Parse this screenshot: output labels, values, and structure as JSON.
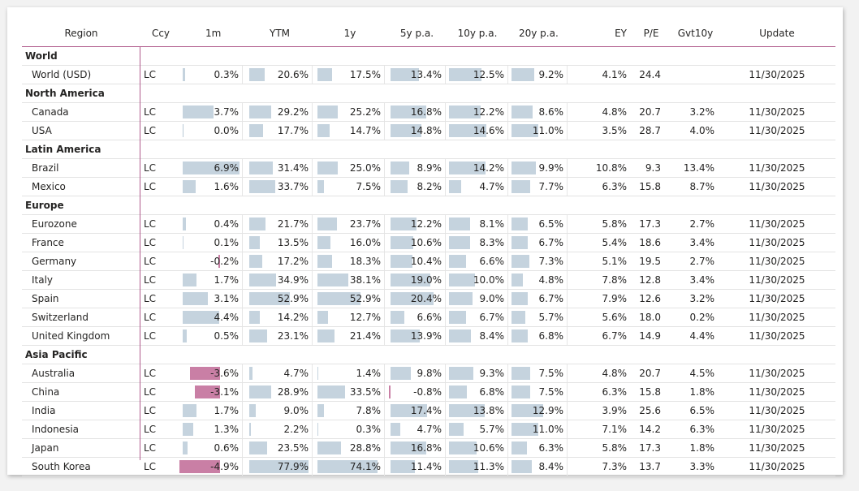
{
  "columns": {
    "region": "Region",
    "ccy": "Ccy",
    "m1": "1m",
    "ytm": "YTM",
    "y1": "1y",
    "y5": "5y p.a.",
    "y10": "10y p.a.",
    "y20": "20y p.a.",
    "ey": "EY",
    "pe": "P/E",
    "gvt10y": "Gvt10y",
    "update": "Update"
  },
  "colors": {
    "bar": "#c5d3de",
    "neg_bar": "#c97fa5",
    "accent_line": "#b05a8c"
  },
  "rows": [
    {
      "type": "group",
      "region": "World"
    },
    {
      "type": "data",
      "region": "World (USD)",
      "ccy": "LC",
      "m1": 0.3,
      "ytm": 20.6,
      "y1": 17.5,
      "y5": 13.4,
      "y10": 12.5,
      "y20": 9.2,
      "ey": "4.1%",
      "pe": "24.4",
      "gvt10y": "",
      "update": "11/30/2025"
    },
    {
      "type": "group",
      "region": "North America"
    },
    {
      "type": "data",
      "region": "Canada",
      "ccy": "LC",
      "m1": 3.7,
      "ytm": 29.2,
      "y1": 25.2,
      "y5": 16.8,
      "y10": 12.2,
      "y20": 8.6,
      "ey": "4.8%",
      "pe": "20.7",
      "gvt10y": "3.2%",
      "update": "11/30/2025"
    },
    {
      "type": "data",
      "region": "USA",
      "ccy": "LC",
      "m1": 0.0,
      "ytm": 17.7,
      "y1": 14.7,
      "y5": 14.8,
      "y10": 14.6,
      "y20": 11.0,
      "ey": "3.5%",
      "pe": "28.7",
      "gvt10y": "4.0%",
      "update": "11/30/2025"
    },
    {
      "type": "group",
      "region": "Latin America"
    },
    {
      "type": "data",
      "region": "Brazil",
      "ccy": "LC",
      "m1": 6.9,
      "ytm": 31.4,
      "y1": 25.0,
      "y5": 8.9,
      "y10": 14.2,
      "y20": 9.9,
      "ey": "10.8%",
      "pe": "9.3",
      "gvt10y": "13.4%",
      "update": "11/30/2025"
    },
    {
      "type": "data",
      "region": "Mexico",
      "ccy": "LC",
      "m1": 1.6,
      "ytm": 33.7,
      "y1": 7.5,
      "y5": 8.2,
      "y10": 4.7,
      "y20": 7.7,
      "ey": "6.3%",
      "pe": "15.8",
      "gvt10y": "8.7%",
      "update": "11/30/2025"
    },
    {
      "type": "group",
      "region": "Europe"
    },
    {
      "type": "data",
      "region": "Eurozone",
      "ccy": "LC",
      "m1": 0.4,
      "ytm": 21.7,
      "y1": 23.7,
      "y5": 12.2,
      "y10": 8.1,
      "y20": 6.5,
      "ey": "5.8%",
      "pe": "17.3",
      "gvt10y": "2.7%",
      "update": "11/30/2025"
    },
    {
      "type": "data",
      "region": "France",
      "ccy": "LC",
      "m1": 0.1,
      "ytm": 13.5,
      "y1": 16.0,
      "y5": 10.6,
      "y10": 8.3,
      "y20": 6.7,
      "ey": "5.4%",
      "pe": "18.6",
      "gvt10y": "3.4%",
      "update": "11/30/2025"
    },
    {
      "type": "data",
      "region": "Germany",
      "ccy": "LC",
      "m1": -0.2,
      "ytm": 17.2,
      "y1": 18.3,
      "y5": 10.4,
      "y10": 6.6,
      "y20": 7.3,
      "ey": "5.1%",
      "pe": "19.5",
      "gvt10y": "2.7%",
      "update": "11/30/2025"
    },
    {
      "type": "data",
      "region": "Italy",
      "ccy": "LC",
      "m1": 1.7,
      "ytm": 34.9,
      "y1": 38.1,
      "y5": 19.0,
      "y10": 10.0,
      "y20": 4.8,
      "ey": "7.8%",
      "pe": "12.8",
      "gvt10y": "3.4%",
      "update": "11/30/2025"
    },
    {
      "type": "data",
      "region": "Spain",
      "ccy": "LC",
      "m1": 3.1,
      "ytm": 52.9,
      "y1": 52.9,
      "y5": 20.4,
      "y10": 9.0,
      "y20": 6.7,
      "ey": "7.9%",
      "pe": "12.6",
      "gvt10y": "3.2%",
      "update": "11/30/2025"
    },
    {
      "type": "data",
      "region": "Switzerland",
      "ccy": "LC",
      "m1": 4.4,
      "ytm": 14.2,
      "y1": 12.7,
      "y5": 6.6,
      "y10": 6.7,
      "y20": 5.7,
      "ey": "5.6%",
      "pe": "18.0",
      "gvt10y": "0.2%",
      "update": "11/30/2025"
    },
    {
      "type": "data",
      "region": "United Kingdom",
      "ccy": "LC",
      "m1": 0.5,
      "ytm": 23.1,
      "y1": 21.4,
      "y5": 13.9,
      "y10": 8.4,
      "y20": 6.8,
      "ey": "6.7%",
      "pe": "14.9",
      "gvt10y": "4.4%",
      "update": "11/30/2025"
    },
    {
      "type": "group",
      "region": "Asia Pacific"
    },
    {
      "type": "data",
      "region": "Australia",
      "ccy": "LC",
      "m1": -3.6,
      "ytm": 4.7,
      "y1": 1.4,
      "y5": 9.8,
      "y10": 9.3,
      "y20": 7.5,
      "ey": "4.8%",
      "pe": "20.7",
      "gvt10y": "4.5%",
      "update": "11/30/2025"
    },
    {
      "type": "data",
      "region": "China",
      "ccy": "LC",
      "m1": -3.1,
      "ytm": 28.9,
      "y1": 33.5,
      "y5": -0.8,
      "y10": 6.8,
      "y20": 7.5,
      "ey": "6.3%",
      "pe": "15.8",
      "gvt10y": "1.8%",
      "update": "11/30/2025"
    },
    {
      "type": "data",
      "region": "India",
      "ccy": "LC",
      "m1": 1.7,
      "ytm": 9.0,
      "y1": 7.8,
      "y5": 17.4,
      "y10": 13.8,
      "y20": 12.9,
      "ey": "3.9%",
      "pe": "25.6",
      "gvt10y": "6.5%",
      "update": "11/30/2025"
    },
    {
      "type": "data",
      "region": "Indonesia",
      "ccy": "LC",
      "m1": 1.3,
      "ytm": 2.2,
      "y1": 0.3,
      "y5": 4.7,
      "y10": 5.7,
      "y20": 11.0,
      "ey": "7.1%",
      "pe": "14.2",
      "gvt10y": "6.3%",
      "update": "11/30/2025"
    },
    {
      "type": "data",
      "region": "Japan",
      "ccy": "LC",
      "m1": 0.6,
      "ytm": 23.5,
      "y1": 28.8,
      "y5": 16.8,
      "y10": 10.6,
      "y20": 6.3,
      "ey": "5.8%",
      "pe": "17.3",
      "gvt10y": "1.8%",
      "update": "11/30/2025"
    },
    {
      "type": "data",
      "region": "South Korea",
      "ccy": "LC",
      "m1": -4.9,
      "ytm": 77.9,
      "y1": 74.1,
      "y5": 11.4,
      "y10": 11.3,
      "y20": 8.4,
      "ey": "7.3%",
      "pe": "13.7",
      "gvt10y": "3.3%",
      "update": "11/30/2025"
    }
  ]
}
